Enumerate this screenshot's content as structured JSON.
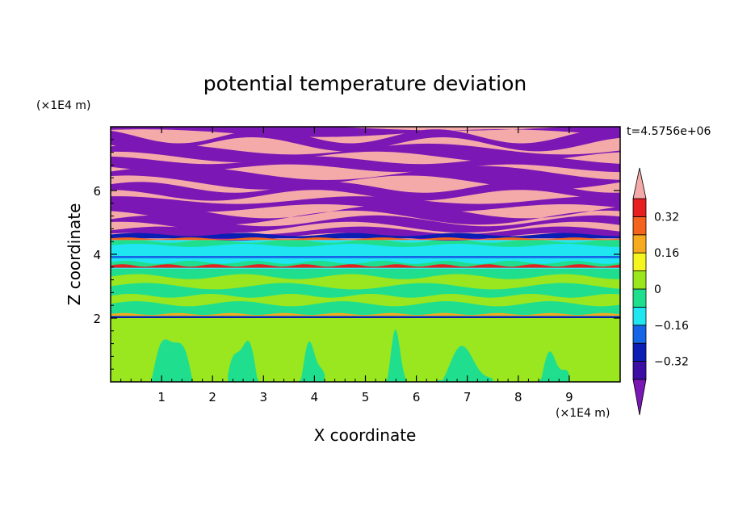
{
  "chart_data": {
    "type": "heatmap",
    "title": "potential temperature deviation",
    "xlabel": "X coordinate",
    "ylabel": "Z coordinate",
    "x_unit": "(×1E4 m)",
    "y_unit": "(×1E4 m)",
    "time_label": "t=4.5756e+06",
    "xlim": [
      0,
      10
    ],
    "ylim": [
      0,
      8
    ],
    "x_ticks": [
      1,
      2,
      3,
      4,
      5,
      6,
      7,
      8,
      9
    ],
    "y_ticks": [
      2,
      4,
      6
    ],
    "colorbar": {
      "levels": [
        -0.4,
        -0.32,
        -0.24,
        -0.16,
        -0.08,
        0,
        0.08,
        0.16,
        0.24,
        0.32,
        0.4
      ],
      "labels": [
        "0.32",
        "0.16",
        "0",
        "−0.16",
        "−0.32"
      ],
      "label_values": [
        0.32,
        0.16,
        0,
        -0.16,
        -0.32
      ],
      "colors": [
        "#7b17b4",
        "#3b0fa3",
        "#0a1eb4",
        "#1466e6",
        "#1fe6f0",
        "#1fdf8e",
        "#9ae61f",
        "#f5f51f",
        "#f5aa1f",
        "#f5641f",
        "#e61f1f",
        "#f5aaaa"
      ],
      "extend": "both"
    },
    "bands": [
      {
        "z_range": [
          0,
          2.0
        ],
        "value": 0.04,
        "note": "lime with green plumes"
      },
      {
        "z_range": [
          2.0,
          2.05
        ],
        "value": -0.3,
        "note": "thin dark-blue line"
      },
      {
        "z_range": [
          2.05,
          3.5
        ],
        "value": 0.01,
        "note": "mostly green"
      },
      {
        "z_range": [
          3.5,
          4.4
        ],
        "value": -0.1,
        "note": "cyan layer"
      },
      {
        "z_range": [
          4.4,
          8.0
        ],
        "value": "alternating",
        "note": "pink (>0.4) and purple (<-0.4) stripes"
      }
    ]
  }
}
